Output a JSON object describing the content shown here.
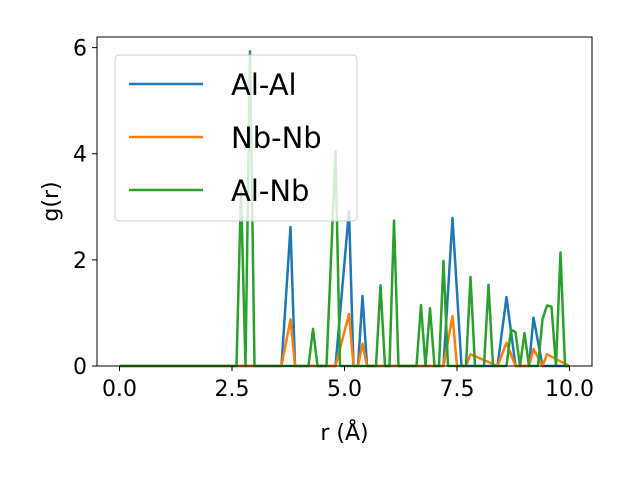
{
  "chart_data": {
    "type": "line",
    "title": "",
    "xlabel": "r (Å)",
    "ylabel": "g(r)",
    "xlim": [
      -0.5,
      10.5
    ],
    "ylim": [
      0,
      6.2
    ],
    "xticks": [
      "0.0",
      "2.5",
      "5.0",
      "7.5",
      "10.0"
    ],
    "yticks": [
      "0",
      "2",
      "4",
      "6"
    ],
    "grid": false,
    "legend_position": "upper-left",
    "colors": {
      "Al-Al": "#1f77b4",
      "Nb-Nb": "#ff7f0e",
      "Al-Nb": "#2ca02c"
    },
    "series": [
      {
        "name": "Al-Al",
        "x": [
          0.0,
          3.6,
          3.8,
          3.9,
          4.1,
          4.8,
          5.1,
          5.2,
          5.3,
          5.4,
          5.5,
          7.2,
          7.4,
          7.6,
          8.4,
          8.6,
          8.8,
          9.1,
          9.2,
          9.4,
          10.0
        ],
        "y": [
          0.0,
          0.0,
          2.62,
          0.0,
          0.0,
          0.0,
          2.93,
          0.0,
          0.0,
          1.32,
          0.0,
          0.0,
          2.79,
          0.0,
          0.0,
          1.3,
          0.0,
          0.0,
          0.91,
          0.0,
          0.0
        ]
      },
      {
        "name": "Nb-Nb",
        "x": [
          0.0,
          3.6,
          3.8,
          3.9,
          4.8,
          5.1,
          5.2,
          5.3,
          5.4,
          5.5,
          7.2,
          7.4,
          7.5,
          7.7,
          7.8,
          8.4,
          8.6,
          8.8,
          9.1,
          9.2,
          9.4,
          9.5,
          10.0
        ],
        "y": [
          0.0,
          0.0,
          0.88,
          0.0,
          0.0,
          0.98,
          0.0,
          0.0,
          0.42,
          0.0,
          0.0,
          0.94,
          0.0,
          0.0,
          0.22,
          0.0,
          0.44,
          0.0,
          0.0,
          0.32,
          0.0,
          0.22,
          0.0
        ]
      },
      {
        "name": "Al-Nb",
        "x": [
          0.0,
          2.6,
          2.7,
          2.8,
          2.9,
          3.0,
          3.1,
          4.1,
          4.2,
          4.3,
          4.4,
          4.6,
          4.8,
          4.9,
          5.0,
          5.6,
          5.7,
          5.8,
          5.9,
          6.0,
          6.1,
          6.2,
          6.6,
          6.7,
          6.8,
          6.9,
          7.0,
          7.1,
          7.2,
          7.3,
          7.6,
          7.7,
          7.8,
          7.9,
          8.0,
          8.1,
          8.2,
          8.3,
          8.4,
          8.5,
          8.6,
          8.7,
          8.8,
          8.9,
          9.0,
          9.1,
          9.2,
          9.3,
          9.4,
          9.5,
          9.6,
          9.7,
          9.8,
          9.9,
          10.0
        ],
        "y": [
          0.0,
          0.0,
          3.3,
          0.0,
          5.93,
          0.0,
          0.0,
          0.0,
          0.0,
          0.7,
          0.0,
          0.0,
          4.05,
          0.0,
          0.0,
          0.0,
          0.0,
          1.52,
          0.0,
          0.0,
          2.74,
          0.0,
          0.0,
          1.15,
          0.0,
          1.09,
          0.0,
          0.0,
          1.98,
          0.0,
          0.0,
          0.0,
          1.68,
          0.0,
          0.0,
          0.0,
          1.53,
          0.0,
          0.0,
          0.0,
          0.0,
          0.68,
          0.64,
          0.0,
          0.62,
          0.0,
          0.0,
          0.0,
          0.88,
          1.14,
          1.12,
          0.0,
          2.14,
          0.0,
          0.0
        ]
      }
    ]
  }
}
